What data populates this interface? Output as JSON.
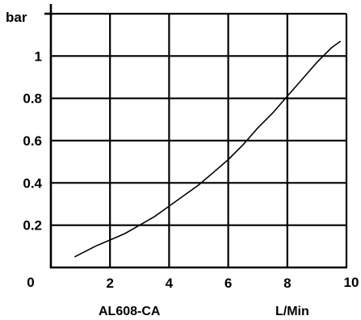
{
  "chart_data": {
    "type": "line",
    "title": "AL608-CA",
    "xlabel": "L/Min",
    "ylabel": "bar",
    "xlim": [
      0,
      10
    ],
    "ylim": [
      0,
      1.2
    ],
    "grid": true,
    "x_ticks": [
      0,
      2,
      4,
      6,
      8,
      10
    ],
    "x_tick_labels": [
      "0",
      "2",
      "4",
      "6",
      "8",
      "10"
    ],
    "y_ticks": [
      0.2,
      0.4,
      0.6,
      0.8,
      1.0
    ],
    "y_tick_labels": [
      "0.2",
      "0.4",
      "0.6",
      "0.8",
      "1"
    ],
    "series": [
      {
        "x": [
          0.8,
          1.5,
          2.0,
          2.5,
          3.0,
          3.5,
          4.0,
          4.5,
          5.0,
          5.5,
          6.0,
          6.5,
          7.0,
          7.5,
          8.0,
          8.5,
          9.0,
          9.5,
          9.8
        ],
        "y": [
          0.05,
          0.1,
          0.13,
          0.16,
          0.2,
          0.24,
          0.29,
          0.34,
          0.39,
          0.45,
          0.51,
          0.58,
          0.66,
          0.73,
          0.81,
          0.89,
          0.97,
          1.04,
          1.07
        ]
      }
    ]
  }
}
